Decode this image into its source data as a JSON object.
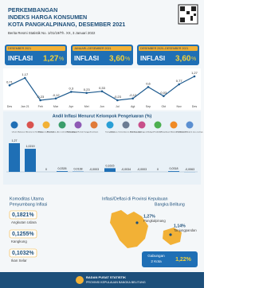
{
  "header": {
    "title_lines": [
      "PERKEMBANGAN",
      "INDEKS HARGA KONSUMEN",
      "KOTA PANGKALPINANG, DESEMBER 2021"
    ],
    "subtitle": "Berita Resmi Statistik No. 1/01/19/Th. XX, 3 Januari 2022"
  },
  "summary": [
    {
      "period": "DESEMBER 2021",
      "label": "INFLASI",
      "value": "1,27",
      "unit": "%"
    },
    {
      "period": "JANUARI–DESEMBER 2021",
      "label": "INFLASI",
      "value": "3,60",
      "unit": "%"
    },
    {
      "period": "DESEMBER 2020–DESEMBER 2021",
      "label": "INFLASI",
      "value": "3,60",
      "unit": "%"
    }
  ],
  "chart_data": [
    {
      "type": "line",
      "categories": [
        "Des",
        "Jan 21",
        "Feb",
        "Mar",
        "Apr",
        "Mei",
        "Jun",
        "Jul",
        "Agt",
        "Sep",
        "Okt",
        "Nov",
        "Des"
      ],
      "values": [
        0.71,
        1.17,
        -0.23,
        -0.12,
        0.3,
        0.23,
        0.33,
        -0.23,
        -0.12,
        0.6,
        0.03,
        0.77,
        1.27
      ],
      "value_labels": [
        "0,71",
        "1,17",
        "-0,23",
        "-0,12",
        "0,3",
        "0,23",
        "0,33",
        "-0,23",
        "-0,12",
        "0,6",
        "0,03",
        "0,77",
        "1,27"
      ],
      "color": "#1d5a8e"
    },
    {
      "type": "bar",
      "title": "Andil Inflasi Menurut Kelompok Pengeluaran (%)",
      "categories": [
        "Umum",
        "Makanan, Minuman & Tembakau",
        "Pakaian & Alas Kaki",
        "Perumahan, Air, Listrik & Bahan Bakar",
        "Perlengkapan Rumah Tangga",
        "Kesehatan",
        "Transportasi",
        "Informasi, Komunikasi & Jasa Keuangan",
        "Rekreasi, Olahraga & Budaya",
        "Pendidikan",
        "Penyediaan Makanan & Minuman",
        "Perawatan Pribadi & Jasa Lainnya"
      ],
      "values": [
        1.27,
        1.0219,
        0,
        0.0326,
        0.0138,
        -0.0003,
        0.1615,
        -0.0034,
        -0.0003,
        0,
        0.0318,
        -0.0063
      ],
      "value_labels": [
        "1,27",
        "1,0219",
        "0",
        "0,0326",
        "0,0138",
        "-0,0003",
        "0,1615",
        "-0,0034",
        "-0,0003",
        "0",
        "0,0318",
        "-0,0063"
      ],
      "color": "#1f6fb5"
    }
  ],
  "commodities": {
    "title_lines": [
      "Komoditas Utama",
      "Penyumbang Inflasi"
    ],
    "items": [
      {
        "value": "0,1821%",
        "name": "Angkutan Udara"
      },
      {
        "value": "0,1255%",
        "name": "Kangkung"
      },
      {
        "value": "0,1032%",
        "name": "Ikan Selar"
      }
    ]
  },
  "regions": {
    "title_lines": [
      "Inflasi/Deflasi di Provinsi Kepulauan",
      "Bangka Belitung"
    ],
    "items": [
      {
        "value": "1,27%",
        "name": "Pangkalpinang"
      },
      {
        "value": "1,14%",
        "name": "Tanjungpandan"
      }
    ],
    "combined": {
      "name_lines": [
        "Gabungan",
        "2 Kota"
      ],
      "value": "1,22%"
    }
  },
  "footer": {
    "lines": [
      "BADAN PUSAT STATISTIK",
      "PROVINSI KEPULAUAN BANGKA BELITUNG"
    ]
  }
}
